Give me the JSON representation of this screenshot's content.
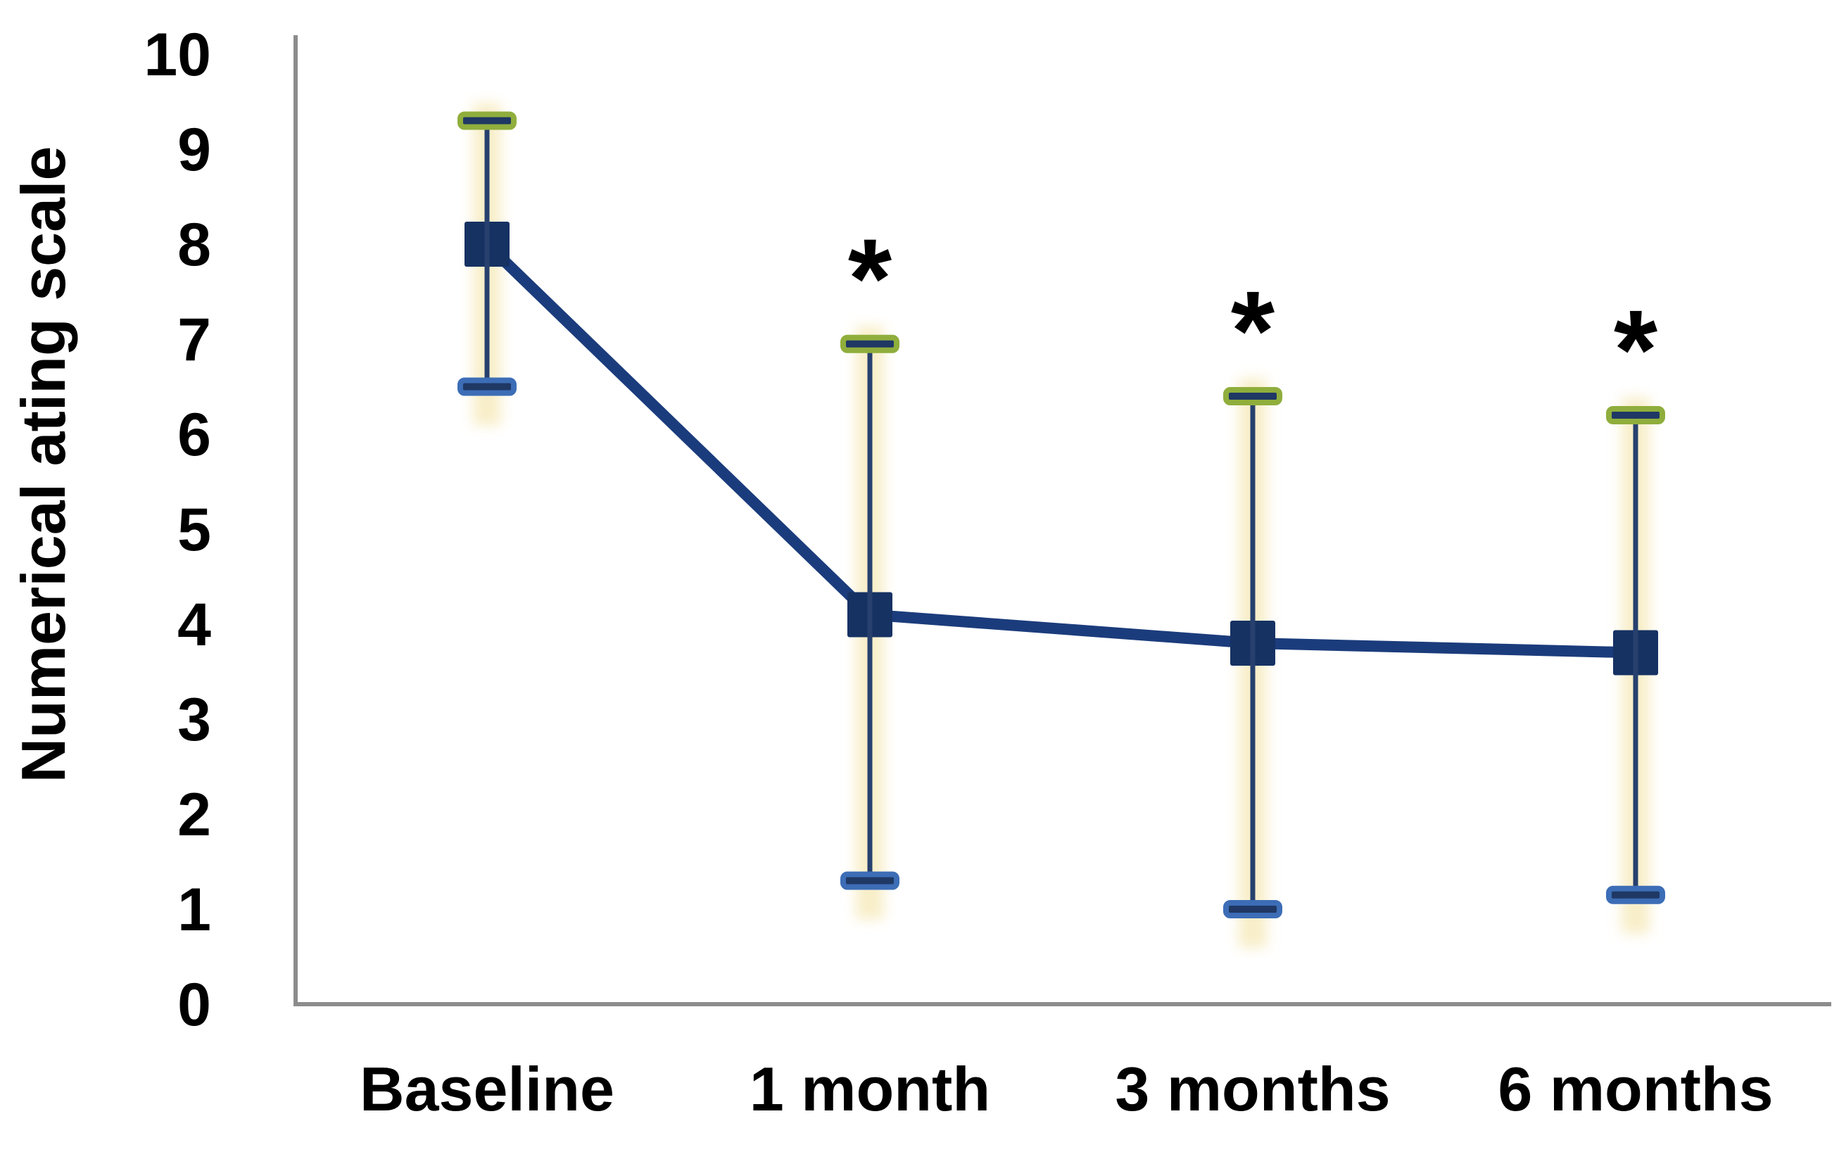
{
  "chart_data": {
    "type": "line",
    "title": "",
    "ylabel": "Numerical ating scale",
    "xlabel": "",
    "categories": [
      "Baseline",
      "1 month",
      "3 months",
      "6 months"
    ],
    "yticks": [
      0,
      1,
      2,
      3,
      4,
      5,
      6,
      7,
      8,
      9,
      10
    ],
    "ylim": [
      0,
      10
    ],
    "grid": false,
    "legend": "none",
    "series": [
      {
        "means": [
          8.0,
          4.1,
          3.8,
          3.7
        ],
        "error_upper": [
          9.3,
          6.95,
          6.4,
          6.2
        ],
        "error_lower": [
          6.5,
          1.3,
          1.0,
          1.15
        ],
        "annotations": [
          "",
          "*",
          "*",
          "*"
        ]
      }
    ],
    "colors": {
      "series_line": "#1b3c7c",
      "marker_fill": "#163263",
      "error_line": "#27406e",
      "cap_fill": "#1f3864",
      "cap_top_border": "#8fae3c",
      "cap_bottom_border": "#3c6db6",
      "glow": "#f7ebbf",
      "axis": "#8c8c8c",
      "text": "#000000"
    }
  }
}
